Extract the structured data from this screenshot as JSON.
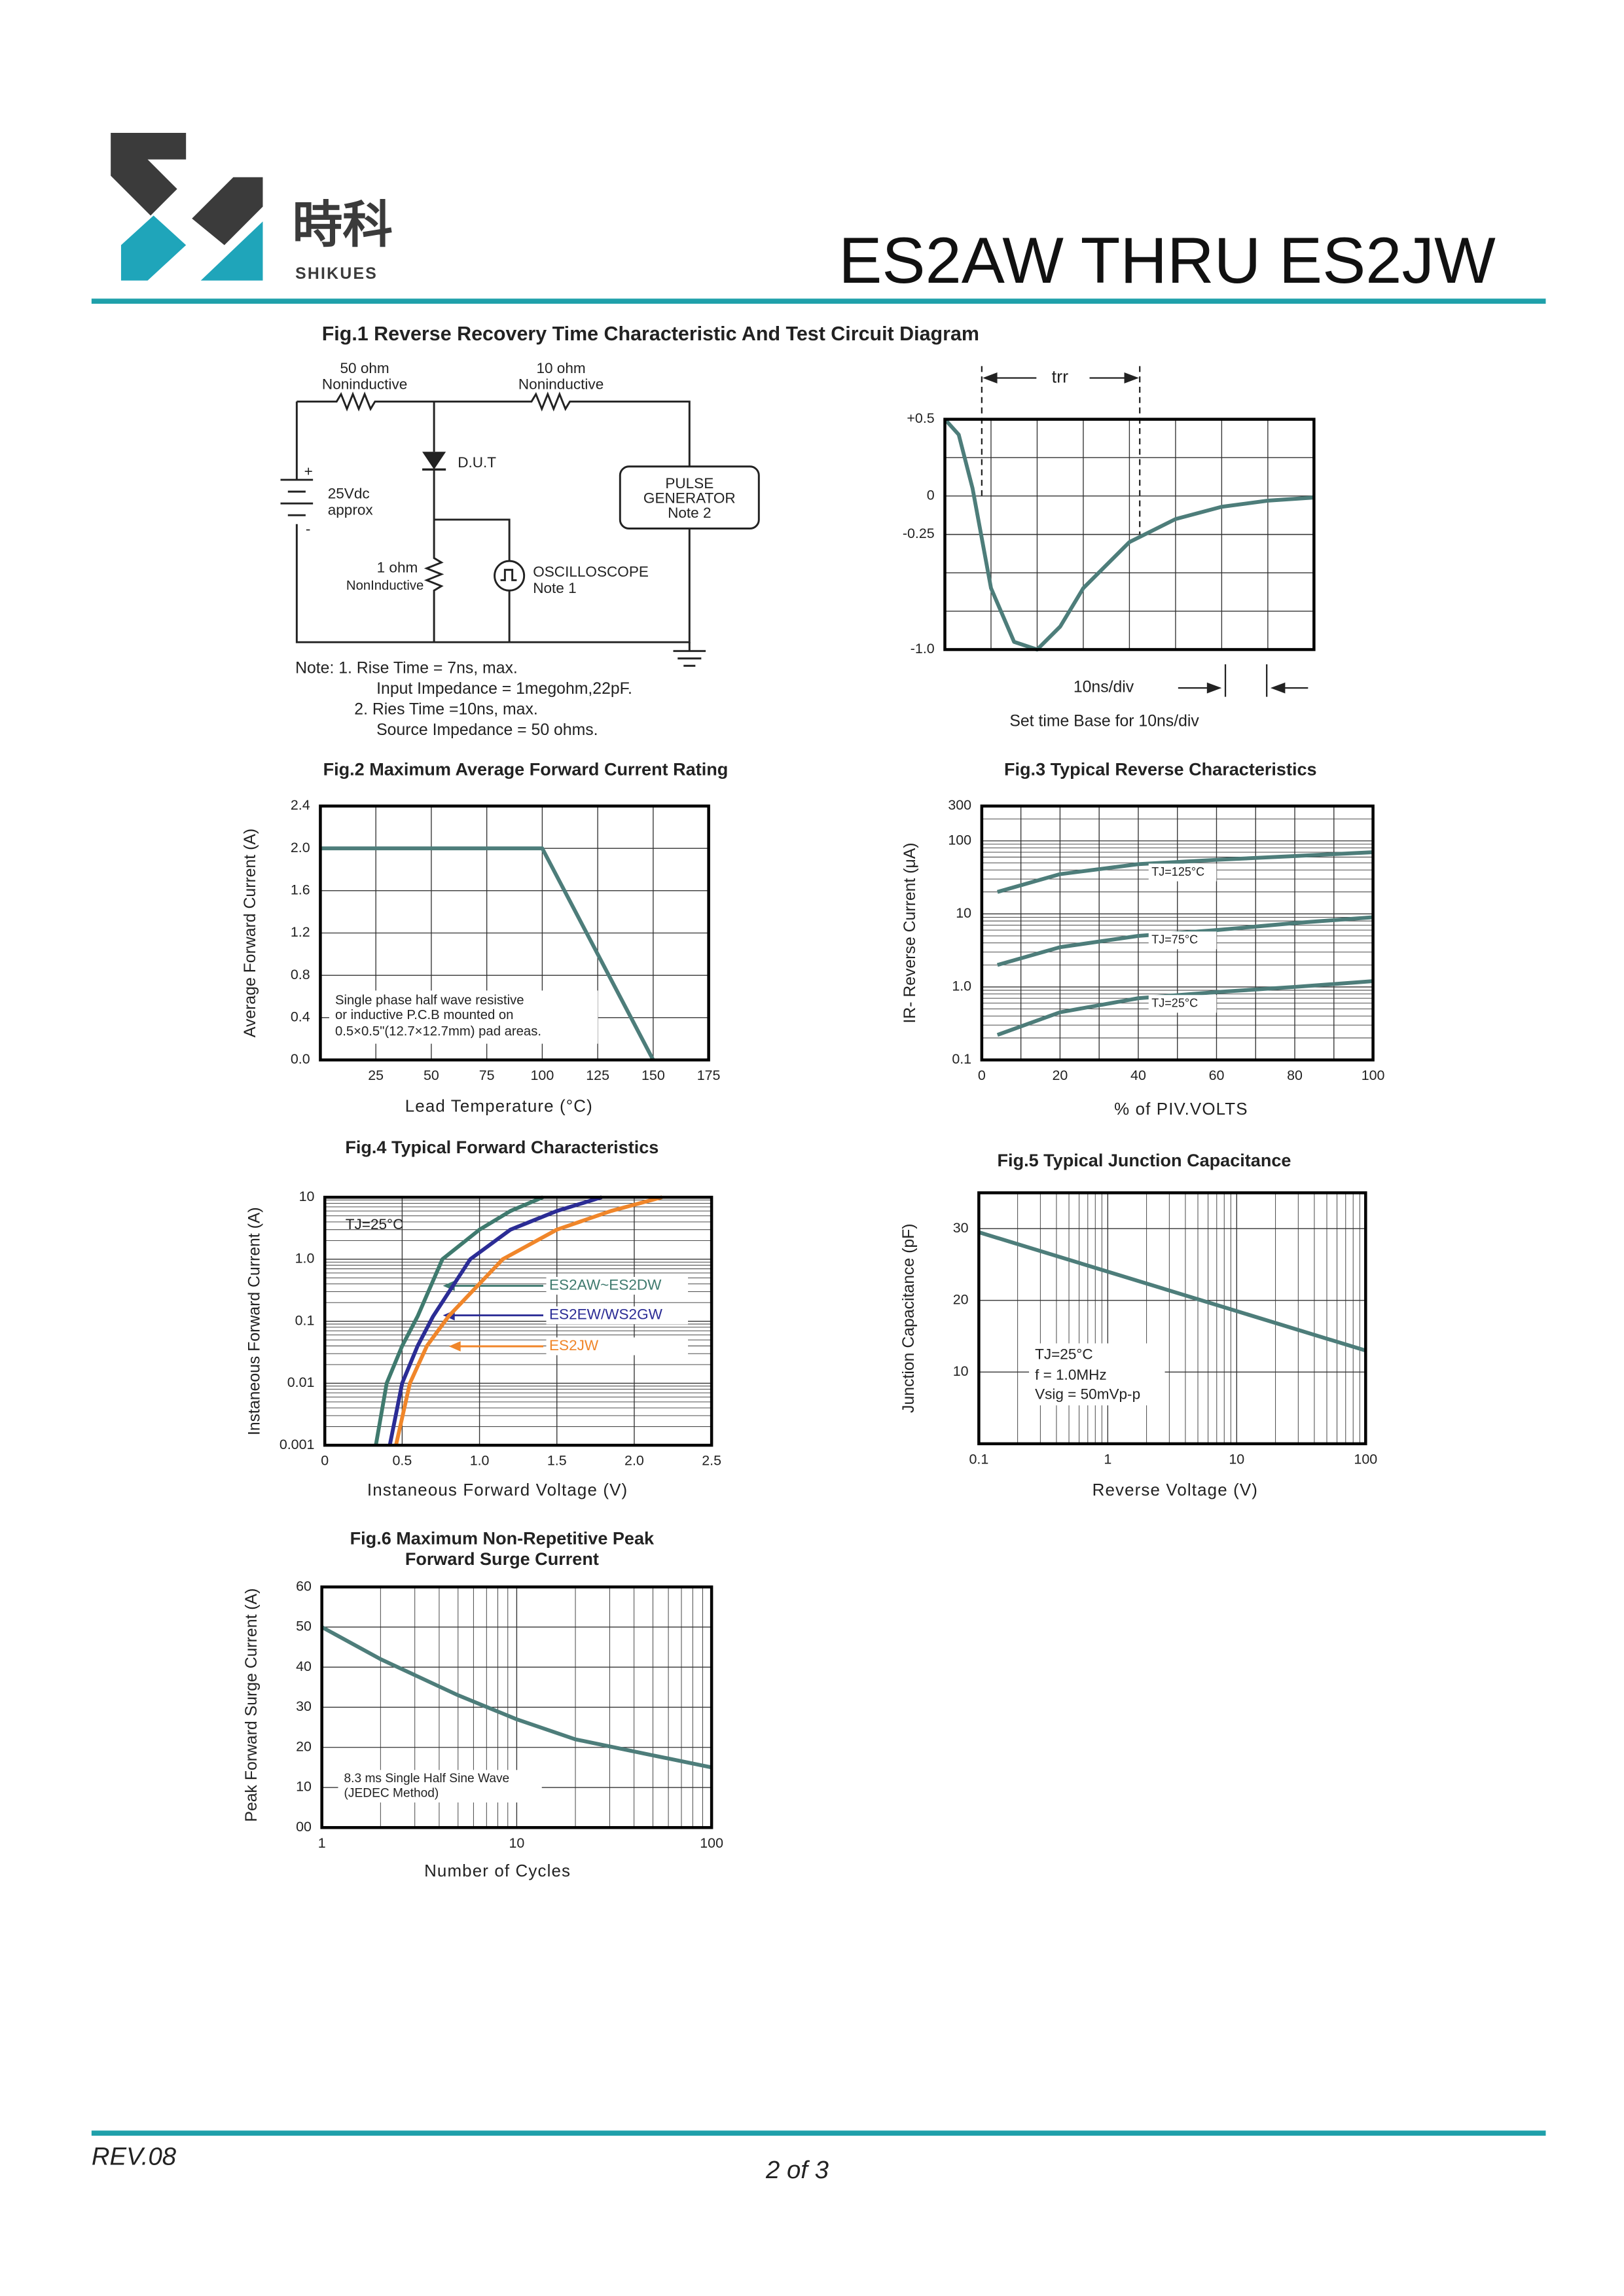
{
  "header": {
    "logo_cn": "時科",
    "logo_en": "SHIKUES",
    "title": "ES2AW THRU ES2JW"
  },
  "fig1": {
    "title": "Fig.1  Reverse Recovery Time Characteristic And Test Circuit Diagram",
    "circuit": {
      "r1_value": "50 ohm",
      "r1_type": "Noninductive",
      "r2_value": "10 ohm",
      "r2_type": "Noninductive",
      "dut": "D.U.T",
      "plus": "+",
      "supply": "25Vdc",
      "supply_note": "approx",
      "minus": "-",
      "pulse_1": "PULSE",
      "pulse_2": "GENERATOR",
      "pulse_3": "Note 2",
      "r3_value": "1 ohm",
      "r3_type": "NonInductive",
      "scope_1": "OSCILLOSCOPE",
      "scope_2": "Note 1"
    },
    "notes": [
      "Note:  1. Rise Time = 7ns, max.",
      "Input Impedance = 1megohm,22pF.",
      "2. Ries Time =10ns, max.",
      "Source Impedance = 50 ohms."
    ]
  },
  "chart_data": [
    {
      "type": "line",
      "xlim": [
        0,
        80
      ],
      "ylim": [
        -1.0,
        0.5
      ],
      "yticks": [
        {
          "value": 0.5,
          "label": "+0.5"
        },
        0,
        -0.25,
        {
          "value": -1.0,
          "label": "-1.0"
        }
      ],
      "annotations": [
        "trr",
        "10ns/div",
        "Set time Base for 10ns/div"
      ],
      "series": [
        {
          "color": "#4d7d7a",
          "x": [
            0,
            3,
            6,
            10,
            15,
            20,
            25,
            30,
            40,
            50,
            60,
            70,
            80
          ],
          "values": [
            0.5,
            0.4,
            0.05,
            -0.6,
            -0.95,
            -1.0,
            -0.85,
            -0.6,
            -0.3,
            -0.15,
            -0.07,
            -0.03,
            -0.01
          ]
        }
      ]
    },
    {
      "type": "line",
      "title": "Fig.2  Maximum Average Forward Current Rating",
      "xlabel": "Lead Temperature (°C)",
      "ylabel": "Average Forward Current  (A)",
      "xlim": [
        0,
        175
      ],
      "xticks": [
        25,
        50,
        75,
        100,
        125,
        150,
        175
      ],
      "ylim": [
        0,
        2.4
      ],
      "yticks": [
        {
          "value": 0,
          "label": "0.0"
        },
        0.4,
        0.8,
        1.2,
        1.6,
        {
          "value": 2,
          "label": "2.0"
        },
        2.4
      ],
      "annotations": [
        "Single phase half wave resistive",
        "or inductive P.C.B mounted on",
        "0.5×0.5\"(12.7×12.7mm) pad  areas."
      ],
      "series": [
        {
          "color": "#4d7d7a",
          "x": [
            0,
            100,
            150
          ],
          "values": [
            2.0,
            2.0,
            0
          ]
        }
      ]
    },
    {
      "type": "line",
      "title": "Fig.3  Typical Reverse Characteristics",
      "xlabel": "% of PIV.VOLTS",
      "ylabel": "IR- Reverse Current (μA)",
      "xlim": [
        0,
        100
      ],
      "xticks": [
        0,
        20,
        40,
        60,
        80,
        100
      ],
      "ylim": [
        0.1,
        300
      ],
      "yscale": "log",
      "yticks": [
        0.1,
        {
          "value": 1,
          "label": "1.0"
        },
        10,
        100,
        300
      ],
      "series": [
        {
          "name": "TJ=125°C",
          "color": "#4d7d7a",
          "x": [
            4,
            20,
            40,
            60,
            80,
            100
          ],
          "values": [
            20,
            35,
            48,
            55,
            62,
            70
          ]
        },
        {
          "name": "TJ=75°C",
          "color": "#4d7d7a",
          "x": [
            4,
            20,
            40,
            60,
            80,
            100
          ],
          "values": [
            2,
            3.5,
            5,
            6,
            7.5,
            9
          ]
        },
        {
          "name": "TJ=25°C",
          "color": "#4d7d7a",
          "x": [
            4,
            20,
            40,
            60,
            80,
            100
          ],
          "values": [
            0.22,
            0.45,
            0.7,
            0.85,
            1.0,
            1.2
          ]
        }
      ]
    },
    {
      "type": "line",
      "title": "Fig.4  Typical Forward Characteristics",
      "xlabel": "Instaneous Forward Voltage (V)",
      "ylabel": "Instaneous Forward Current (A)",
      "xlim": [
        0,
        2.5
      ],
      "xticks": [
        0,
        0.5,
        {
          "value": 1,
          "label": "1.0"
        },
        1.5,
        {
          "value": 2,
          "label": "2.0"
        },
        2.5
      ],
      "ylim": [
        0.001,
        10
      ],
      "yscale": "log",
      "yticks": [
        0.001,
        0.01,
        0.1,
        {
          "value": 1,
          "label": "1.0"
        },
        10
      ],
      "annotations": [
        "TJ=25°C"
      ],
      "series": [
        {
          "name": "ES2AW~ES2DW",
          "color": "#3f7a6e",
          "x": [
            0.33,
            0.4,
            0.5,
            0.6,
            0.76,
            1.0,
            1.2,
            1.41
          ],
          "values": [
            0.001,
            0.01,
            0.04,
            0.12,
            1,
            3,
            6,
            10
          ]
        },
        {
          "name": "ES2EW/WS2GW",
          "color": "#2b2c95",
          "x": [
            0.42,
            0.5,
            0.6,
            0.7,
            0.94,
            1.2,
            1.5,
            1.79
          ],
          "values": [
            0.001,
            0.01,
            0.04,
            0.12,
            1,
            3,
            6,
            10
          ]
        },
        {
          "name": "ES2JW",
          "color": "#f0862a",
          "x": [
            0.46,
            0.55,
            0.66,
            0.8,
            1.15,
            1.5,
            1.85,
            2.18
          ],
          "values": [
            0.001,
            0.01,
            0.04,
            0.12,
            1,
            3,
            6,
            10
          ]
        }
      ]
    },
    {
      "type": "line",
      "title": "Fig.5  Typical Junction Capacitance",
      "xlabel": "Reverse  Voltage (V)",
      "ylabel": "Junction Capacitance (pF)",
      "xlim": [
        0.1,
        100
      ],
      "xscale": "log",
      "xticks": [
        0.1,
        1,
        10,
        100
      ],
      "ylim": [
        0,
        35
      ],
      "yticks": [
        10,
        20,
        30
      ],
      "annotations": [
        "TJ=25°C",
        "f = 1.0MHz",
        "Vsig = 50mVp-p"
      ],
      "series": [
        {
          "color": "#4d7d7a",
          "x": [
            0.1,
            1,
            10,
            100
          ],
          "values": [
            29.5,
            24,
            18.5,
            13
          ]
        }
      ]
    },
    {
      "type": "line",
      "title": [
        "Fig.6  Maximum Non-Repetitive Peak",
        "Forward Surge Current"
      ],
      "xlabel": "Number of Cycles",
      "ylabel": "Peak Forward Surge Current (A)",
      "xlim": [
        1,
        100
      ],
      "xscale": "log",
      "xticks": [
        1,
        10,
        100
      ],
      "ylim": [
        0,
        60
      ],
      "yticks": [
        {
          "value": 0,
          "label": "00"
        },
        10,
        20,
        30,
        40,
        50,
        60
      ],
      "annotations": [
        "8.3 ms Single Half Sine Wave",
        "(JEDEC Method)"
      ],
      "series": [
        {
          "color": "#4d7d7a",
          "x": [
            1,
            2,
            5,
            10,
            20,
            50,
            100
          ],
          "values": [
            50,
            42,
            33,
            27,
            22,
            18,
            15
          ]
        }
      ]
    }
  ],
  "footer": {
    "rev": "REV.08",
    "page": "2 of 3"
  }
}
